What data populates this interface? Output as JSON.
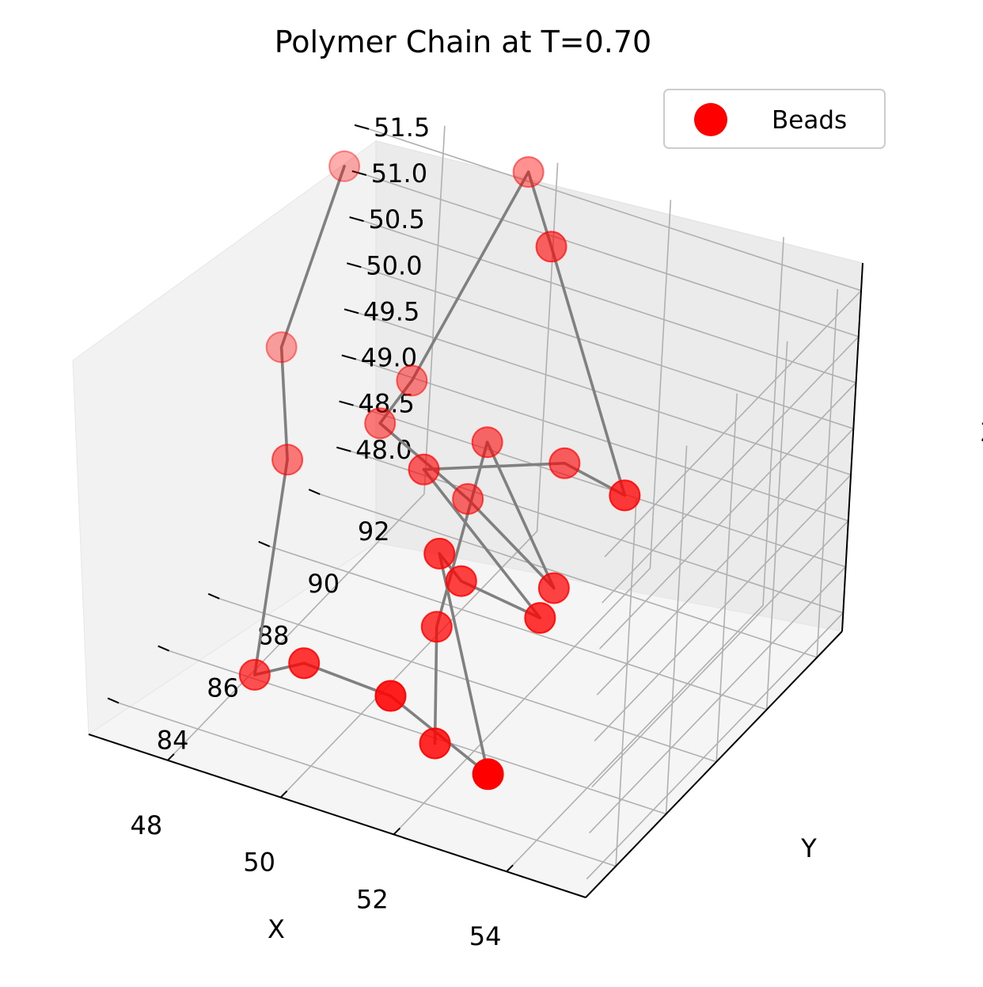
{
  "chart_data": {
    "type": "scatter",
    "projection": "3d",
    "title": "Polymer Chain at T=0.70",
    "xlabel": "X",
    "ylabel": "Y",
    "zlabel": "Z",
    "grid": true,
    "legend_placement": "top-right",
    "x_ticks": [
      "48",
      "50",
      "52",
      "54"
    ],
    "y_ticks": [
      "84",
      "86",
      "88",
      "90",
      "92"
    ],
    "z_ticks": [
      "48.0",
      "48.5",
      "49.0",
      "49.5",
      "50.0",
      "50.5",
      "51.0",
      "51.5"
    ],
    "xlim": [
      46.6,
      55.4
    ],
    "ylim": [
      82.8,
      93.0
    ],
    "zlim": [
      47.8,
      51.8
    ],
    "colors": {
      "beads": "#ff0000",
      "chain": "#808080",
      "pane": "#f2f2f2",
      "grid": "#b0b0b0"
    },
    "series": [
      {
        "name": "Beads",
        "marker": "circle",
        "connected": true,
        "x": [
          46.5,
          46.2,
          47.4,
          48.4,
          49.7,
          51.4,
          53.5,
          51.0,
          51.2,
          52.4,
          49.7,
          51.4,
          53.3,
          51.0,
          49.5,
          48.5,
          48.4,
          50.0,
          52.2,
          50.2,
          50.9,
          51.6
        ],
        "y": [
          92.5,
          91.0,
          88.6,
          85.3,
          84.2,
          83.8,
          83.0,
          86.5,
          87.0,
          87.5,
          88.8,
          90.6,
          88.6,
          90.5,
          93.0,
          91.0,
          90.0,
          90.0,
          88.5,
          90.2,
          86.8,
          85.3
        ],
        "z": [
          51.2,
          49.6,
          49.3,
          48.1,
          48.8,
          48.9,
          48.7,
          49.6,
          49.2,
          48.9,
          49.6,
          49.5,
          50.1,
          51.8,
          51.6,
          49.7,
          49.5,
          49.0,
          48.9,
          49.6,
          48.7,
          48.0
        ]
      }
    ]
  }
}
